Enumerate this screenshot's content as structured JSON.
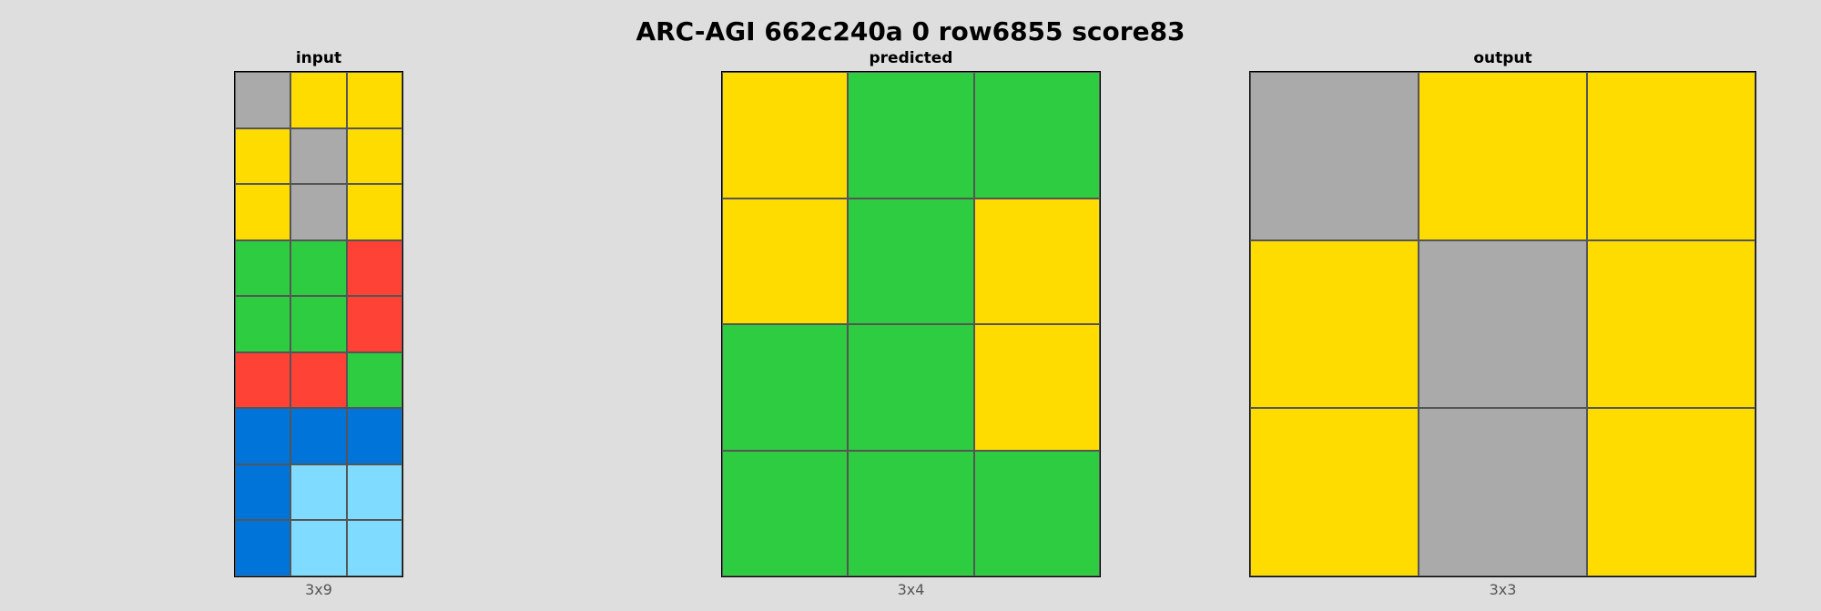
{
  "title": "ARC-AGI 662c240a 0 row6855 score83",
  "colors": {
    "0": "#000000",
    "1": "#0074D9",
    "2": "#FF4136",
    "3": "#2ECC40",
    "4": "#FFDC00",
    "5": "#AAAAAA",
    "6": "#F012BE",
    "7": "#FF851B",
    "8": "#7FDBFF",
    "9": "#870C25"
  },
  "panels": [
    {
      "label": "input",
      "dims": "3x9",
      "grid": [
        [
          5,
          4,
          4
        ],
        [
          4,
          5,
          4
        ],
        [
          4,
          5,
          4
        ],
        [
          3,
          3,
          2
        ],
        [
          3,
          3,
          2
        ],
        [
          2,
          2,
          3
        ],
        [
          1,
          1,
          1
        ],
        [
          1,
          8,
          8
        ],
        [
          1,
          8,
          8
        ]
      ]
    },
    {
      "label": "predicted",
      "dims": "3x4",
      "grid": [
        [
          4,
          3,
          3
        ],
        [
          4,
          3,
          4
        ],
        [
          3,
          3,
          4
        ],
        [
          3,
          3,
          3
        ]
      ]
    },
    {
      "label": "output",
      "dims": "3x3",
      "grid": [
        [
          5,
          4,
          4
        ],
        [
          4,
          5,
          4
        ],
        [
          4,
          5,
          4
        ]
      ]
    }
  ]
}
